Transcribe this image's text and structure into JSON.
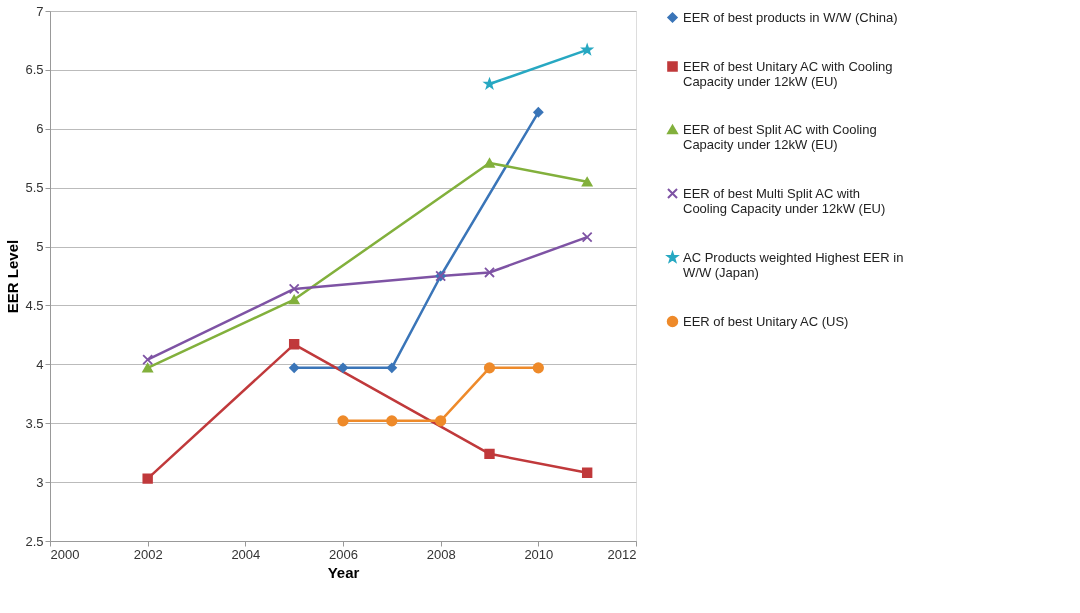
{
  "chart_data": {
    "type": "line",
    "xlabel": "Year",
    "ylabel": "EER Level",
    "xlim": [
      2000,
      2012
    ],
    "xticks": [
      2000,
      2002,
      2004,
      2006,
      2008,
      2010,
      2012
    ],
    "ylim": [
      2.5,
      7
    ],
    "yticks": [
      2.5,
      3,
      3.5,
      4,
      4.5,
      5,
      5.5,
      6,
      6.5,
      7
    ],
    "grid": "y",
    "legend": "right",
    "series": [
      {
        "name": "EER of best products in W/W (China)",
        "color": "#3a75b8",
        "marker": "diamond",
        "x": [
          2005,
          2006,
          2007,
          2008,
          2010
        ],
        "values": [
          3.97,
          3.97,
          3.97,
          4.75,
          6.14
        ]
      },
      {
        "name": "EER of best Unitary AC with Cooling Capacity under 12kW (EU)",
        "color": "#c0393b",
        "marker": "square",
        "x": [
          2002,
          2005,
          2009,
          2011
        ],
        "values": [
          3.03,
          4.17,
          3.24,
          3.08
        ]
      },
      {
        "name": "EER of best Split AC with Cooling Capacity under 12kW (EU)",
        "color": "#82b03c",
        "marker": "triangle",
        "x": [
          2002,
          2005,
          2009,
          2011
        ],
        "values": [
          3.97,
          4.55,
          5.71,
          5.55
        ]
      },
      {
        "name": "EER of best Multi Split AC with Cooling Capacity under 12kW (EU)",
        "color": "#7e53a4",
        "marker": "cross",
        "x": [
          2002,
          2005,
          2008,
          2009,
          2011
        ],
        "values": [
          4.04,
          4.64,
          4.75,
          4.78,
          5.08
        ]
      },
      {
        "name": "AC Products weighted Highest EER in W/W (Japan)",
        "color": "#27a8c2",
        "marker": "star",
        "x": [
          2009,
          2011
        ],
        "values": [
          6.38,
          6.67
        ]
      },
      {
        "name": "EER of best Unitary AC (US)",
        "color": "#ee8a2a",
        "marker": "circle",
        "x": [
          2006,
          2007,
          2008,
          2009,
          2010
        ],
        "values": [
          3.52,
          3.52,
          3.52,
          3.97,
          3.97
        ]
      }
    ]
  }
}
